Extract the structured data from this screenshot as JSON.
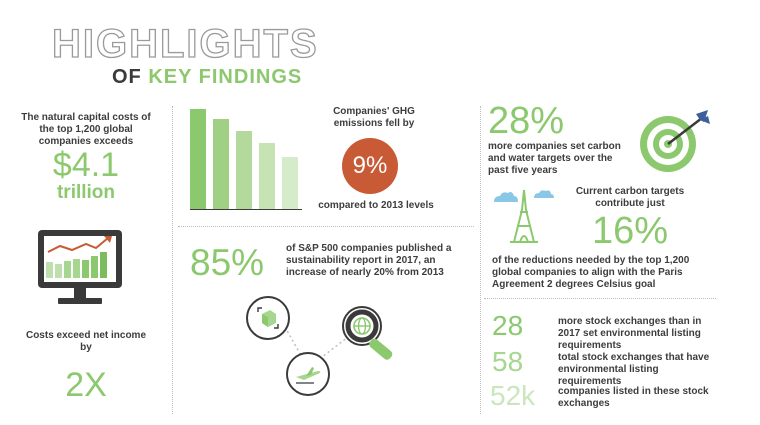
{
  "header": {
    "title": "HIGHLIGHTS",
    "subtitle_prefix": "OF ",
    "subtitle_highlight": "KEY FINDINGS"
  },
  "capital": {
    "text": "The natural capital costs of the top 1,200 global companies exceeds",
    "value": "$4.1",
    "unit": "trillion"
  },
  "costs": {
    "text": "Costs exceed net income by",
    "value": "2X"
  },
  "ghg": {
    "text": "Companies' GHG emissions fell by",
    "value": "9%",
    "footer": "compared to 2013 levels",
    "bars": [
      1.0,
      0.9,
      0.78,
      0.66,
      0.52
    ]
  },
  "sp500": {
    "value": "85%",
    "text": "of S&P 500 companies published a sustainability report in 2017, an increase of nearly 20% from 2013"
  },
  "targets": {
    "value": "28%",
    "text": "more companies set carbon and water targets over the past five years"
  },
  "carbon": {
    "text": "Current carbon targets contribute just",
    "value": "16%",
    "footer": "of the reductions needed by the top 1,200 global companies to align with the Paris Agreement 2 degrees Celsius goal"
  },
  "exchanges": [
    {
      "value": "28",
      "text": "more stock exchanges than in 2017 set environmental listing requirements"
    },
    {
      "value": "58",
      "text": "total stock exchanges that have environmental listing requirements"
    },
    {
      "value": "52k",
      "text": "companies listed in these stock exchanges"
    }
  ],
  "colors": {
    "green": "#8cc86e",
    "circle": "#c85a36",
    "dark": "#3a3a3a"
  }
}
